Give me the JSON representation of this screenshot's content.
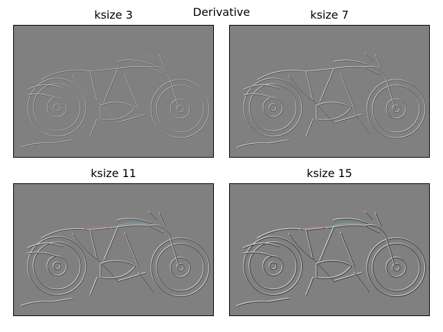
{
  "figure": {
    "suptitle": "Derivative",
    "background": "#ffffff",
    "panel_fill": "#808080",
    "edge_light": "#d0d0d0",
    "edge_dark": "#4a4a4a",
    "tint_red": "#b07a70",
    "tint_cyan": "#70a8b0",
    "panels": [
      {
        "title": "ksize 3",
        "ksize": 3
      },
      {
        "title": "ksize 7",
        "ksize": 7
      },
      {
        "title": "ksize 11",
        "ksize": 11
      },
      {
        "title": "ksize 15",
        "ksize": 15
      }
    ]
  }
}
